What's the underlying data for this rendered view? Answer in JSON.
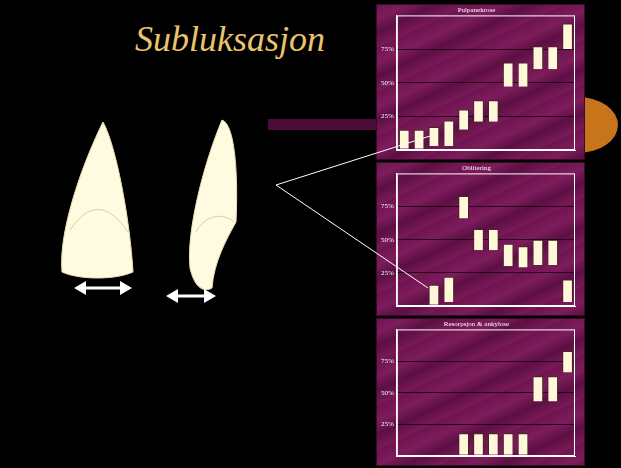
{
  "slide_title": "Subluksasjon",
  "chart_data": [
    {
      "type": "bar",
      "title": "Pulpanekrose",
      "categories": [
        null,
        null,
        null,
        null,
        null,
        null,
        null,
        null,
        null,
        null,
        null,
        null
      ],
      "values": [
        [
          1,
          15
        ],
        [
          1,
          15
        ],
        [
          3,
          17
        ],
        [
          3,
          22
        ],
        [
          15,
          30
        ],
        [
          21,
          37
        ],
        [
          21,
          37
        ],
        [
          47,
          65
        ],
        [
          47,
          65
        ],
        [
          60,
          77
        ],
        [
          60,
          77
        ],
        [
          75,
          94
        ]
      ],
      "color": "#fff8d8",
      "ylim": [
        0,
        100
      ],
      "yticks": [
        {
          "value": 25,
          "label": "25%"
        },
        {
          "value": 50,
          "label": "50%"
        },
        {
          "value": 75,
          "label": "75%"
        }
      ],
      "grid": true,
      "tick_labels": "y"
    },
    {
      "type": "bar",
      "title": "Oblitering",
      "categories": [
        null,
        null,
        null,
        null,
        null,
        null,
        null,
        null,
        null,
        null,
        null,
        null
      ],
      "values": [
        null,
        null,
        [
          1,
          16
        ],
        [
          3,
          22
        ],
        [
          66,
          83
        ],
        [
          42,
          58
        ],
        [
          42,
          58
        ],
        [
          30,
          47
        ],
        [
          29,
          45
        ],
        [
          31,
          50
        ],
        [
          31,
          50
        ],
        [
          3,
          20
        ]
      ],
      "color": "#fff8d8",
      "ylim": [
        0,
        100
      ],
      "yticks": [
        {
          "value": 25,
          "label": "25%"
        },
        {
          "value": 50,
          "label": "50%"
        },
        {
          "value": 75,
          "label": "75%"
        }
      ],
      "grid": true,
      "tick_labels": "y"
    },
    {
      "type": "bar",
      "title": "Resorpsjon & ankylose",
      "categories": [
        null,
        null,
        null,
        null,
        null,
        null,
        null,
        null,
        null,
        null,
        null,
        null
      ],
      "values": [
        null,
        null,
        null,
        null,
        [
          1,
          18
        ],
        [
          1,
          18
        ],
        [
          1,
          18
        ],
        [
          1,
          18
        ],
        [
          1,
          18
        ],
        [
          43,
          63
        ],
        [
          43,
          63
        ],
        [
          66,
          83
        ]
      ],
      "color": "#fff8d8",
      "ylim": [
        0,
        100
      ],
      "yticks": [
        {
          "value": 25,
          "label": "25%"
        },
        {
          "value": 50,
          "label": "50%"
        },
        {
          "value": 75,
          "label": "75%"
        }
      ],
      "grid": true,
      "tick_labels": "y"
    }
  ]
}
